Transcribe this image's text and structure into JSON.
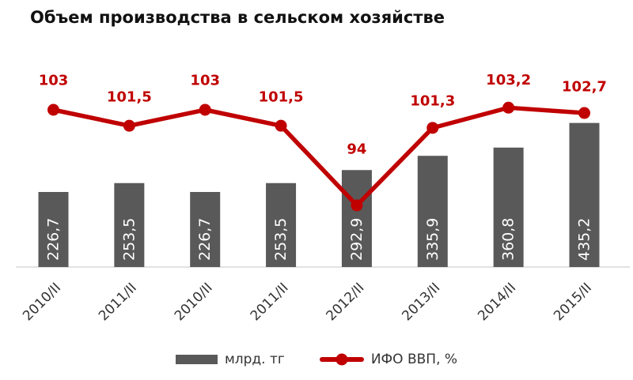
{
  "title": "Объем производства в сельском хозяйстве",
  "chart_data": {
    "type": "combo-bar-line",
    "title": "Объем производства в сельском хозяйстве",
    "categories": [
      "2010/II",
      "2011/II",
      "2010/II",
      "2011/II",
      "2012/II",
      "2013/II",
      "2014/II",
      "2015/II"
    ],
    "series": [
      {
        "name": "млрд. тг",
        "type": "bar",
        "color": "#595959",
        "values": [
          226.7,
          253.5,
          226.7,
          253.5,
          292.9,
          335.9,
          360.8,
          435.2
        ],
        "labels": [
          "226,7",
          "253,5",
          "226,7",
          "253,5",
          "292,9",
          "335,9",
          "360,8",
          "435,2"
        ],
        "label_color": "#ffffff",
        "label_position": "inside-end-rotated-up"
      },
      {
        "name": "ИФО ВВП, %",
        "type": "line",
        "color": "#c00000",
        "marker": "circle",
        "values": [
          103,
          101.5,
          103,
          101.5,
          94,
          101.3,
          103.2,
          102.7
        ],
        "labels": [
          "103",
          "101,5",
          "103",
          "101,5",
          "94",
          "101,3",
          "103,2",
          "102,7"
        ],
        "label_color": "#c00000",
        "label_position": "above"
      }
    ],
    "xlabel": "",
    "ylabel": "",
    "value_axis_visible": false,
    "gridlines": false,
    "category_label_rotation_deg": 45,
    "category_label_color": "#333333",
    "axis_line_color": "#d9d9d9",
    "legend_position": "bottom",
    "background_color": "#ffffff"
  }
}
